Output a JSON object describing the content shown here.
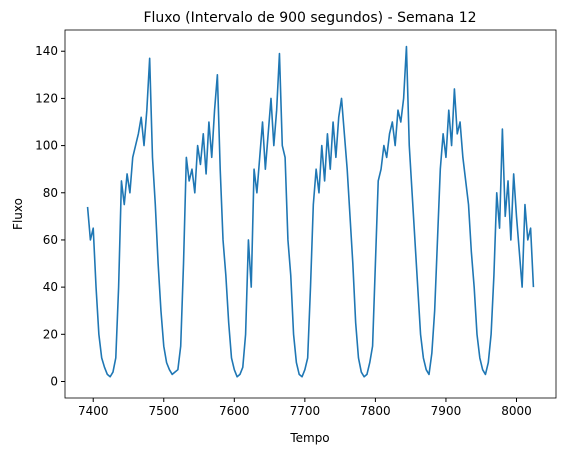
{
  "chart_data": {
    "type": "line",
    "title": "Fluxo (Intervalo de 900 segundos) - Semana 12",
    "x_label": "Tempo",
    "y_label": "Fluxo",
    "x": [
      7392,
      7396,
      7400,
      7404,
      7408,
      7412,
      7416,
      7420,
      7424,
      7428,
      7432,
      7436,
      7440,
      7444,
      7448,
      7452,
      7456,
      7460,
      7464,
      7468,
      7472,
      7476,
      7480,
      7484,
      7488,
      7492,
      7496,
      7500,
      7504,
      7508,
      7512,
      7516,
      7520,
      7524,
      7528,
      7532,
      7536,
      7540,
      7544,
      7548,
      7552,
      7556,
      7560,
      7564,
      7568,
      7572,
      7576,
      7580,
      7584,
      7588,
      7592,
      7596,
      7600,
      7604,
      7608,
      7612,
      7616,
      7620,
      7624,
      7628,
      7632,
      7636,
      7640,
      7644,
      7648,
      7652,
      7656,
      7660,
      7664,
      7668,
      7672,
      7676,
      7680,
      7684,
      7688,
      7692,
      7696,
      7700,
      7704,
      7708,
      7712,
      7716,
      7720,
      7724,
      7728,
      7732,
      7736,
      7740,
      7744,
      7748,
      7752,
      7756,
      7760,
      7764,
      7768,
      7772,
      7776,
      7780,
      7784,
      7788,
      7792,
      7796,
      7800,
      7804,
      7808,
      7812,
      7816,
      7820,
      7824,
      7828,
      7832,
      7836,
      7840,
      7844,
      7848,
      7852,
      7856,
      7860,
      7864,
      7868,
      7872,
      7876,
      7880,
      7884,
      7888,
      7892,
      7896,
      7900,
      7904,
      7908,
      7912,
      7916,
      7920,
      7924,
      7928,
      7932,
      7936,
      7940,
      7944,
      7948,
      7952,
      7956,
      7960,
      7964,
      7968,
      7972,
      7976,
      7980,
      7984,
      7988,
      7992,
      7996,
      8000,
      8004,
      8008,
      8012,
      8016,
      8020,
      8024
    ],
    "series": [
      {
        "name": "Fluxo",
        "color": "#1f77b4",
        "values": [
          74,
          60,
          65,
          40,
          20,
          10,
          6,
          3,
          2,
          4,
          10,
          40,
          85,
          75,
          88,
          80,
          95,
          100,
          105,
          112,
          100,
          115,
          137,
          95,
          75,
          50,
          30,
          15,
          8,
          5,
          3,
          4,
          5,
          15,
          50,
          95,
          85,
          90,
          80,
          100,
          92,
          105,
          88,
          110,
          95,
          115,
          130,
          90,
          60,
          45,
          25,
          10,
          5,
          2,
          3,
          6,
          20,
          60,
          40,
          90,
          80,
          95,
          110,
          90,
          105,
          120,
          100,
          115,
          139,
          100,
          95,
          60,
          45,
          20,
          8,
          3,
          2,
          5,
          10,
          40,
          75,
          90,
          80,
          100,
          85,
          105,
          90,
          110,
          95,
          112,
          120,
          105,
          90,
          70,
          50,
          25,
          10,
          4,
          2,
          3,
          8,
          15,
          50,
          85,
          90,
          100,
          95,
          105,
          110,
          100,
          115,
          110,
          120,
          142,
          100,
          80,
          60,
          40,
          20,
          10,
          5,
          3,
          12,
          30,
          60,
          90,
          105,
          95,
          115,
          100,
          124,
          105,
          110,
          95,
          85,
          75,
          55,
          40,
          20,
          10,
          5,
          3,
          8,
          20,
          45,
          80,
          65,
          107,
          70,
          85,
          60,
          88,
          70,
          55,
          40,
          75,
          60,
          65,
          40
        ]
      }
    ],
    "xlim": [
      7360,
      8056
    ],
    "ylim": [
      -7,
      149
    ],
    "xticks": [
      7400,
      7500,
      7600,
      7700,
      7800,
      7900,
      8000
    ],
    "yticks": [
      0,
      20,
      40,
      60,
      80,
      100,
      120,
      140
    ]
  }
}
